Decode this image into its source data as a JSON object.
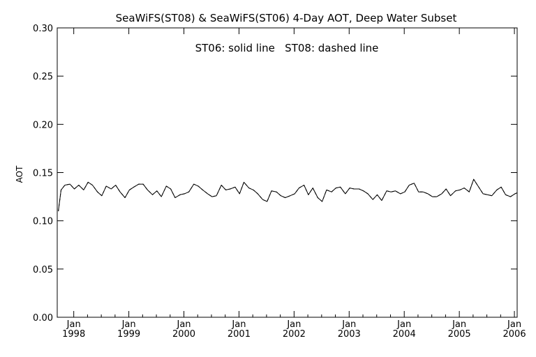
{
  "chart_data": {
    "type": "line",
    "title": "SeaWiFS(ST08) & SeaWiFS(ST06) 4-Day AOT, Deep Water Subset",
    "annotation": "ST06: solid line   ST08: dashed line",
    "xlabel": "",
    "ylabel": "AOT",
    "ylim": [
      0.0,
      0.3
    ],
    "yticks": [
      "0.00",
      "0.05",
      "0.10",
      "0.15",
      "0.20",
      "0.25",
      "0.30"
    ],
    "xlim": [
      1997.7,
      2006.05
    ],
    "xticks": [
      {
        "month": "Jan",
        "year": "1998",
        "value": 1998
      },
      {
        "month": "Jan",
        "year": "1999",
        "value": 1999
      },
      {
        "month": "Jan",
        "year": "2000",
        "value": 2000
      },
      {
        "month": "Jan",
        "year": "2001",
        "value": 2001
      },
      {
        "month": "Jan",
        "year": "2002",
        "value": 2002
      },
      {
        "month": "Jan",
        "year": "2003",
        "value": 2003
      },
      {
        "month": "Jan",
        "year": "2004",
        "value": 2004
      },
      {
        "month": "Jan",
        "year": "2005",
        "value": 2005
      },
      {
        "month": "Jan",
        "year": "2006",
        "value": 2006
      }
    ],
    "grid": false,
    "series": [
      {
        "name": "ST06",
        "style": "solid",
        "color": "#000000",
        "x": [
          1997.72,
          1997.77,
          1997.84,
          1997.93,
          1998.01,
          1998.09,
          1998.18,
          1998.26,
          1998.34,
          1998.43,
          1998.51,
          1998.59,
          1998.68,
          1998.76,
          1998.84,
          1998.93,
          1999.01,
          1999.09,
          1999.18,
          1999.26,
          1999.34,
          1999.43,
          1999.51,
          1999.59,
          1999.68,
          1999.76,
          1999.84,
          1999.93,
          2000.01,
          2000.09,
          2000.18,
          2000.26,
          2000.34,
          2000.43,
          2000.51,
          2000.59,
          2000.68,
          2000.76,
          2000.84,
          2000.93,
          2001.01,
          2001.09,
          2001.18,
          2001.26,
          2001.34,
          2001.43,
          2001.51,
          2001.59,
          2001.68,
          2001.76,
          2001.84,
          2001.93,
          2002.01,
          2002.09,
          2002.18,
          2002.26,
          2002.34,
          2002.43,
          2002.51,
          2002.59,
          2002.68,
          2002.76,
          2002.84,
          2002.93,
          2003.01,
          2003.09,
          2003.18,
          2003.26,
          2003.34,
          2003.43,
          2003.51,
          2003.59,
          2003.68,
          2003.76,
          2003.84,
          2003.93,
          2004.01,
          2004.09,
          2004.18,
          2004.26,
          2004.34,
          2004.43,
          2004.51,
          2004.59,
          2004.68,
          2004.76,
          2004.84,
          2004.93,
          2005.01,
          2005.09,
          2005.18,
          2005.26,
          2005.34,
          2005.43,
          2005.51,
          2005.59,
          2005.68,
          2005.76,
          2005.84,
          2005.93,
          2006.01,
          2006.05
        ],
        "y": [
          0.11,
          0.132,
          0.137,
          0.138,
          0.133,
          0.137,
          0.132,
          0.14,
          0.137,
          0.13,
          0.126,
          0.136,
          0.133,
          0.137,
          0.13,
          0.124,
          0.132,
          0.135,
          0.138,
          0.138,
          0.132,
          0.127,
          0.131,
          0.125,
          0.136,
          0.133,
          0.124,
          0.127,
          0.128,
          0.13,
          0.138,
          0.136,
          0.132,
          0.128,
          0.125,
          0.126,
          0.137,
          0.132,
          0.133,
          0.135,
          0.128,
          0.14,
          0.134,
          0.132,
          0.128,
          0.122,
          0.12,
          0.131,
          0.13,
          0.126,
          0.124,
          0.126,
          0.128,
          0.134,
          0.137,
          0.127,
          0.134,
          0.124,
          0.12,
          0.132,
          0.13,
          0.134,
          0.135,
          0.128,
          0.134,
          0.133,
          0.133,
          0.131,
          0.128,
          0.122,
          0.127,
          0.121,
          0.131,
          0.13,
          0.131,
          0.128,
          0.13,
          0.137,
          0.139,
          0.13,
          0.13,
          0.128,
          0.125,
          0.125,
          0.128,
          0.133,
          0.126,
          0.131,
          0.132,
          0.134,
          0.13,
          0.143,
          0.136,
          0.128,
          0.127,
          0.126,
          0.132,
          0.135,
          0.127,
          0.125,
          0.128,
          0.129
        ]
      },
      {
        "name": "ST08",
        "style": "dashed",
        "color": "#000000",
        "x": [
          1997.72,
          1997.77,
          1997.84,
          1997.93,
          1998.01,
          1998.09,
          1998.18,
          1998.26,
          1998.34,
          1998.43,
          1998.51,
          1998.59,
          1998.68,
          1998.76,
          1998.84,
          1998.93,
          1999.01,
          1999.09,
          1999.18,
          1999.26,
          1999.34,
          1999.43,
          1999.51,
          1999.59,
          1999.68,
          1999.76,
          1999.84,
          1999.93,
          2000.01,
          2000.09,
          2000.18,
          2000.26,
          2000.34,
          2000.43,
          2000.51,
          2000.59,
          2000.68,
          2000.76,
          2000.84,
          2000.93,
          2001.01,
          2001.09,
          2001.18,
          2001.26,
          2001.34,
          2001.43,
          2001.51,
          2001.59,
          2001.68,
          2001.76,
          2001.84,
          2001.93,
          2002.01,
          2002.09,
          2002.18,
          2002.26,
          2002.34,
          2002.43,
          2002.51,
          2002.59,
          2002.68,
          2002.76,
          2002.84,
          2002.93,
          2003.01,
          2003.09,
          2003.18,
          2003.26,
          2003.34,
          2003.43,
          2003.51,
          2003.59,
          2003.68,
          2003.76,
          2003.84,
          2003.93,
          2004.01,
          2004.09,
          2004.18,
          2004.26,
          2004.34,
          2004.43,
          2004.51,
          2004.59,
          2004.68,
          2004.76,
          2004.84,
          2004.93,
          2005.01,
          2005.09,
          2005.18,
          2005.26,
          2005.34,
          2005.43,
          2005.51,
          2005.59,
          2005.68,
          2005.76,
          2005.84,
          2005.93,
          2006.01,
          2006.05
        ],
        "y": [
          0.11,
          0.132,
          0.137,
          0.138,
          0.133,
          0.137,
          0.132,
          0.14,
          0.137,
          0.13,
          0.126,
          0.136,
          0.133,
          0.137,
          0.13,
          0.124,
          0.132,
          0.135,
          0.138,
          0.138,
          0.132,
          0.127,
          0.131,
          0.125,
          0.136,
          0.133,
          0.124,
          0.127,
          0.128,
          0.13,
          0.138,
          0.136,
          0.132,
          0.128,
          0.125,
          0.126,
          0.137,
          0.132,
          0.133,
          0.135,
          0.128,
          0.14,
          0.134,
          0.132,
          0.128,
          0.122,
          0.12,
          0.131,
          0.13,
          0.126,
          0.124,
          0.126,
          0.128,
          0.134,
          0.137,
          0.127,
          0.134,
          0.124,
          0.12,
          0.132,
          0.13,
          0.134,
          0.135,
          0.128,
          0.134,
          0.133,
          0.133,
          0.131,
          0.128,
          0.122,
          0.127,
          0.121,
          0.131,
          0.13,
          0.131,
          0.128,
          0.13,
          0.137,
          0.139,
          0.13,
          0.13,
          0.128,
          0.125,
          0.125,
          0.128,
          0.133,
          0.126,
          0.131,
          0.132,
          0.134,
          0.13,
          0.143,
          0.136,
          0.128,
          0.127,
          0.126,
          0.132,
          0.135,
          0.127,
          0.125,
          0.128,
          0.129
        ]
      }
    ]
  }
}
